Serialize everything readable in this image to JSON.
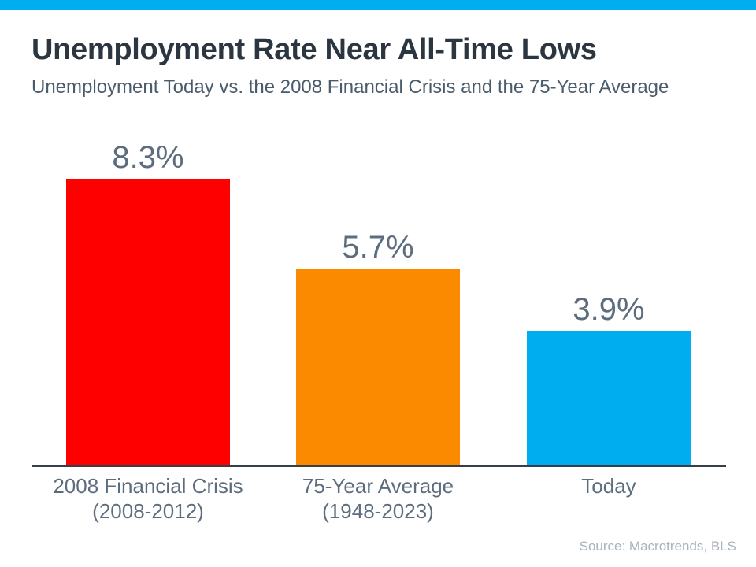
{
  "chart_data": {
    "type": "bar",
    "title": "Unemployment Rate Near All-Time Lows",
    "subtitle": "Unemployment Today vs. the 2008 Financial Crisis and the 75-Year Average",
    "categories": [
      [
        "2008 Financial Crisis",
        "(2008-2012)"
      ],
      [
        "75-Year Average",
        "(1948-2023)"
      ],
      [
        "Today"
      ]
    ],
    "values": [
      8.3,
      5.7,
      3.9
    ],
    "value_labels": [
      "8.3%",
      "5.7%",
      "3.9%"
    ],
    "bar_colors": [
      "#ff0000",
      "#fc8a00",
      "#00aeef"
    ],
    "ylabel": "",
    "xlabel": "",
    "ylim": [
      0,
      9
    ],
    "grid": false,
    "legend": false,
    "source": "Source: Macrotrends, BLS"
  },
  "colors": {
    "accent_bar": "#00aeef",
    "title_text": "#2b3641",
    "subtitle_text": "#4a5b6b",
    "label_text": "#5d6d7d",
    "axis_line": "#363f47",
    "source_text": "#a9b3bc",
    "background": "#ffffff"
  }
}
